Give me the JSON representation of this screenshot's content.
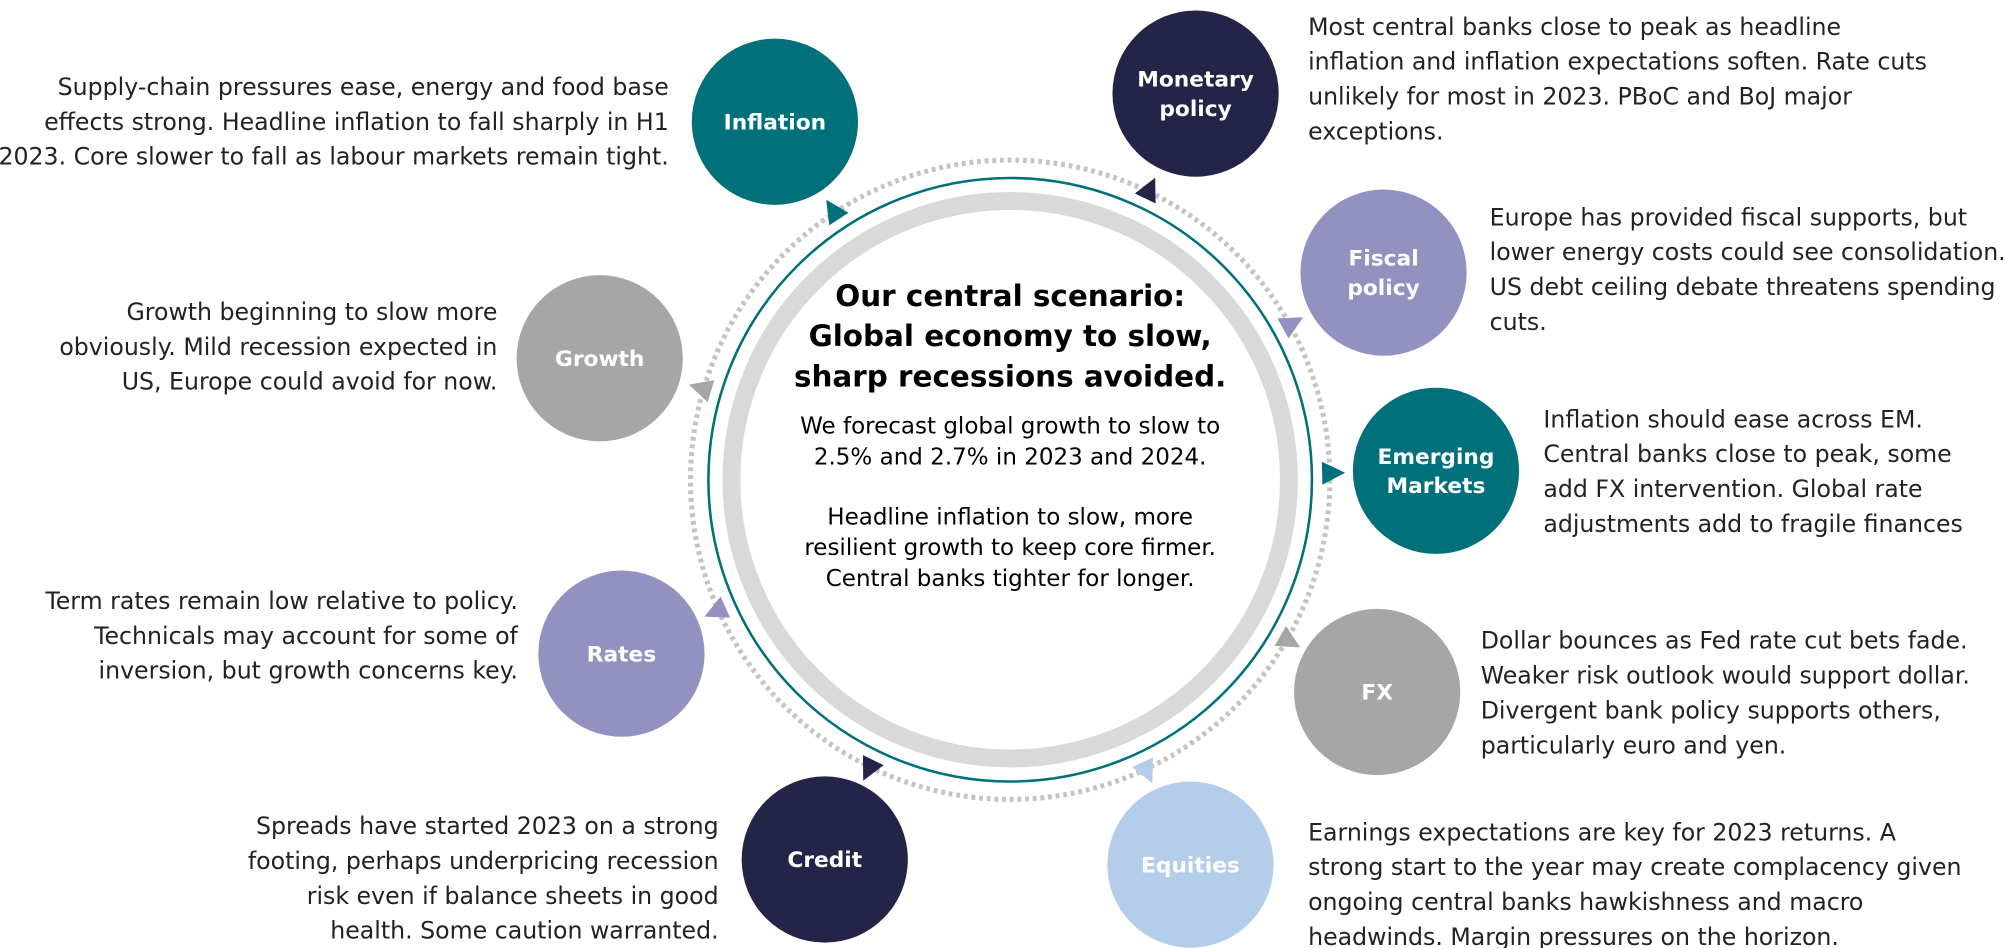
{
  "center": {
    "title": [
      "Our central scenario:",
      "Global economy to slow,",
      "sharp recessions avoided."
    ],
    "body": [
      "We forecast global growth to slow to",
      "2.5% and 2.7% in 2023 and 2024.",
      "Headline inflation to slow, more",
      "resilient growth to keep core firmer.",
      "Central banks tighter for longer."
    ]
  },
  "nodes": [
    {
      "label": [
        "Inflation"
      ],
      "color": "#00707a",
      "text": [
        "Supply-chain pressures ease, energy and food base",
        "effects strong. Headline inflation to fall sharply in H1",
        "2023. Core slower to fall as labour markets remain tight."
      ]
    },
    {
      "label": [
        "Monetary",
        "policy"
      ],
      "color": "#232447",
      "text": [
        "Most central banks close to peak as headline",
        "inflation and inflation expectations soften. Rate cuts",
        "unlikely for most in 2023. PBoC and BoJ major",
        "exceptions."
      ]
    },
    {
      "label": [
        "Fiscal",
        "policy"
      ],
      "color": "#9391bf",
      "text": [
        "Europe has provided fiscal supports, but",
        "lower energy costs could see consolidation.",
        "US debt ceiling debate threatens spending",
        "cuts."
      ]
    },
    {
      "label": [
        "Emerging",
        "Markets"
      ],
      "color": "#00707a",
      "text": [
        "Inflation should ease across EM.",
        "Central banks close to peak, some",
        "add FX intervention. Global rate",
        "adjustments add to fragile finances"
      ]
    },
    {
      "label": [
        "FX"
      ],
      "color": "#a6a6a6",
      "text": [
        "Dollar bounces as Fed rate cut bets fade.",
        "Weaker risk outlook would support dollar.",
        "Divergent bank policy supports others,",
        "particularly euro and yen."
      ]
    },
    {
      "label": [
        "Equities"
      ],
      "color": "#b4cdea",
      "text": [
        "Earnings expectations are key for 2023 returns. A",
        "strong start to the year may create complacency given",
        "ongoing central banks hawkishness and macro",
        "headwinds. Margin pressures on the horizon."
      ]
    },
    {
      "label": [
        "Credit"
      ],
      "color": "#232447",
      "text": [
        "Spreads have started 2023 on a strong",
        "footing, perhaps underpricing recession",
        "risk even if balance sheets in good",
        "health. Some caution warranted."
      ]
    },
    {
      "label": [
        "Rates"
      ],
      "color": "#9391bf",
      "text": [
        "Term rates remain low relative to policy.",
        "Technicals may account for some of",
        "inversion, but growth concerns key."
      ]
    },
    {
      "label": [
        "Growth"
      ],
      "color": "#a6a6a6",
      "text": [
        "Growth beginning to slow more",
        "obviously. Mild recession expected in",
        "US, Europe could avoid for now."
      ]
    }
  ]
}
